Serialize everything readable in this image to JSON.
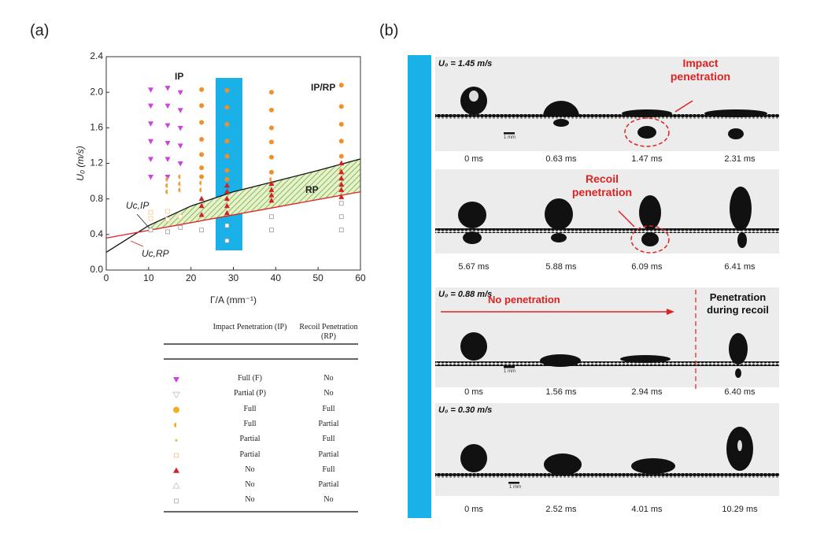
{
  "panel_labels": [
    "(a)",
    "(b)"
  ],
  "chart_data": {
    "type": "scatter",
    "xlabel": "Γ/A (mm⁻¹)",
    "ylabel": "U₀ (m/s)",
    "xlim": [
      0,
      60
    ],
    "xticks": [
      0,
      10,
      20,
      30,
      40,
      50,
      60
    ],
    "ylim": [
      0,
      2.4
    ],
    "yticks": [
      {
        "value": 0,
        "label": "0.0"
      },
      0.4,
      0.8,
      1.2,
      1.6,
      {
        "value": 2,
        "label": "2.0"
      },
      2.4
    ],
    "annotations": [
      "IP",
      "IP/RP",
      "RP",
      "Uc,IP",
      "Uc,RP"
    ],
    "series": [
      {
        "marker": "tri-down",
        "color": "#cc44dd",
        "x": [
          10.5,
          10.5,
          10.5,
          10.5,
          10.5,
          10.5,
          14.5,
          14.5,
          14.5,
          14.5,
          14.5,
          14.5,
          17.5,
          17.5,
          17.5,
          17.5,
          17.5
        ],
        "values": [
          2.03,
          1.85,
          1.65,
          1.45,
          1.25,
          1.05,
          2.05,
          1.85,
          1.63,
          1.43,
          1.25,
          1.05,
          2.0,
          1.8,
          1.6,
          1.4,
          1.2
        ]
      },
      {
        "marker": "circle",
        "color": "#f0902a",
        "x": [
          22.5,
          22.5,
          22.5,
          22.5,
          22.5,
          22.5,
          22.5,
          28.5,
          28.5,
          28.5,
          28.5,
          28.5,
          28.5,
          28.5,
          39,
          39,
          39,
          39,
          39,
          39,
          55.5,
          55.5,
          55.5,
          55.5,
          55.5
        ],
        "values": [
          2.03,
          1.85,
          1.66,
          1.47,
          1.3,
          1.15,
          1.05,
          2.02,
          1.83,
          1.64,
          1.45,
          1.28,
          1.12,
          1.02,
          2.0,
          1.8,
          1.6,
          1.44,
          1.27,
          1.1,
          2.08,
          1.84,
          1.64,
          1.45,
          1.28
        ]
      },
      {
        "marker": "half-circle",
        "color": "#f0a040",
        "x": [
          14.5,
          14.5,
          14.5,
          17.5,
          17.5,
          17.5,
          22.5,
          22.5,
          39,
          55.5
        ],
        "values": [
          1.02,
          0.95,
          0.88,
          1.05,
          0.97,
          0.9,
          0.98,
          0.9,
          1.02,
          1.12
        ]
      },
      {
        "marker": "square-open",
        "color": "#f0c890",
        "x": [
          10.5,
          10.5,
          14.5,
          14.5,
          17.5
        ],
        "values": [
          0.65,
          0.58,
          0.66,
          0.57,
          0.6
        ]
      },
      {
        "marker": "tri-up",
        "color": "#d42020",
        "x": [
          22.5,
          22.5,
          22.5,
          28.5,
          28.5,
          28.5,
          28.5,
          28.5,
          39,
          39,
          39,
          39,
          55.5,
          55.5,
          55.5,
          55.5,
          55.5,
          55.5
        ],
        "values": [
          0.8,
          0.72,
          0.62,
          0.95,
          0.88,
          0.8,
          0.72,
          0.64,
          0.97,
          0.9,
          0.84,
          0.78,
          1.2,
          1.1,
          1.03,
          0.96,
          0.9,
          0.82
        ]
      },
      {
        "marker": "square-open",
        "color": "#999999",
        "x": [
          10.5,
          14.5,
          17.5,
          22.5,
          28.5,
          28.5,
          39,
          39,
          55.5,
          55.5,
          55.5
        ],
        "values": [
          0.45,
          0.43,
          0.48,
          0.45,
          0.5,
          0.33,
          0.6,
          0.45,
          0.75,
          0.6,
          0.45
        ]
      }
    ],
    "curves": [
      {
        "color": "#111111",
        "x": [
          0,
          10,
          20,
          30,
          40,
          50,
          60
        ],
        "values": [
          0.2,
          0.5,
          0.72,
          0.88,
          1.0,
          1.12,
          1.25
        ]
      },
      {
        "color": "#dd2222",
        "x": [
          0,
          60
        ],
        "values": [
          0.36,
          0.88
        ]
      }
    ]
  },
  "legend_table": {
    "header": [
      "Impact Penetration (IP)",
      "Recoil Penetration (RP)"
    ],
    "rows": [
      [
        "Full (F)",
        "No"
      ],
      [
        "Partial (P)",
        "No"
      ],
      [
        "Full",
        "Full"
      ],
      [
        "Full",
        "Partial"
      ],
      [
        "Partial",
        "Full"
      ],
      [
        "Partial",
        "Partial"
      ],
      [
        "No",
        "Full"
      ],
      [
        "No",
        "Partial"
      ],
      [
        "No",
        "No"
      ]
    ]
  },
  "panel_b": {
    "rows": [
      {
        "velocity": "U₀ = 1.45 m/s",
        "annotation": "Impact penetration",
        "scale": "1 mm",
        "times": [
          "0 ms",
          "0.63 ms",
          "1.47 ms",
          "2.31 ms"
        ]
      },
      {
        "annotation": "Recoil penetration",
        "times": [
          "5.67 ms",
          "5.88 ms",
          "6.09 ms",
          "6.41 ms"
        ]
      },
      {
        "velocity": "U₀ = 0.88 m/s",
        "annotation": "No penetration",
        "annotation2": "Penetration during recoil",
        "scale": "1 mm",
        "times": [
          "0 ms",
          "1.56 ms",
          "2.94 ms",
          "6.40 ms"
        ]
      },
      {
        "velocity": "U₀ = 0.30 m/s",
        "scale": "1 mm",
        "times": [
          "0 ms",
          "2.52 ms",
          "4.01 ms",
          "10.29 ms"
        ]
      }
    ]
  }
}
